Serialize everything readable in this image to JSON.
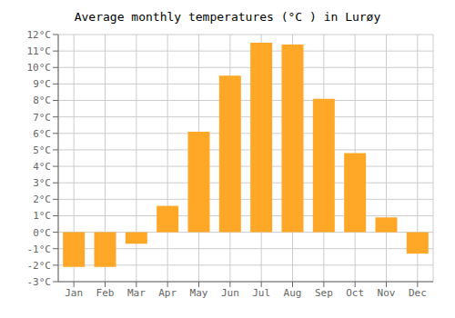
{
  "chart_data": {
    "type": "bar",
    "title": "Average monthly temperatures (°C ) in Lurøy",
    "categories": [
      "Jan",
      "Feb",
      "Mar",
      "Apr",
      "May",
      "Jun",
      "Jul",
      "Aug",
      "Sep",
      "Oct",
      "Nov",
      "Dec"
    ],
    "values": [
      -2.1,
      -2.1,
      -0.7,
      1.6,
      6.1,
      9.5,
      11.5,
      11.4,
      8.1,
      4.8,
      0.9,
      -1.3
    ],
    "color": "#FFA726",
    "ylim": [
      -3,
      12
    ],
    "yticks": [
      {
        "value": -3,
        "label": "-3°C"
      },
      {
        "value": -2,
        "label": "-2°C"
      },
      {
        "value": -1,
        "label": "-1°C"
      },
      {
        "value": 0,
        "label": "0°C"
      },
      {
        "value": 1,
        "label": "1°C"
      },
      {
        "value": 2,
        "label": "2°C"
      },
      {
        "value": 3,
        "label": "3°C"
      },
      {
        "value": 4,
        "label": "4°C"
      },
      {
        "value": 5,
        "label": "5°C"
      },
      {
        "value": 6,
        "label": "6°C"
      },
      {
        "value": 7,
        "label": "7°C"
      },
      {
        "value": 8,
        "label": "8°C"
      },
      {
        "value": 9,
        "label": "9°C"
      },
      {
        "value": 10,
        "label": "10°C"
      },
      {
        "value": 11,
        "label": "11°C"
      },
      {
        "value": 12,
        "label": "12°C"
      }
    ],
    "grid": true
  }
}
